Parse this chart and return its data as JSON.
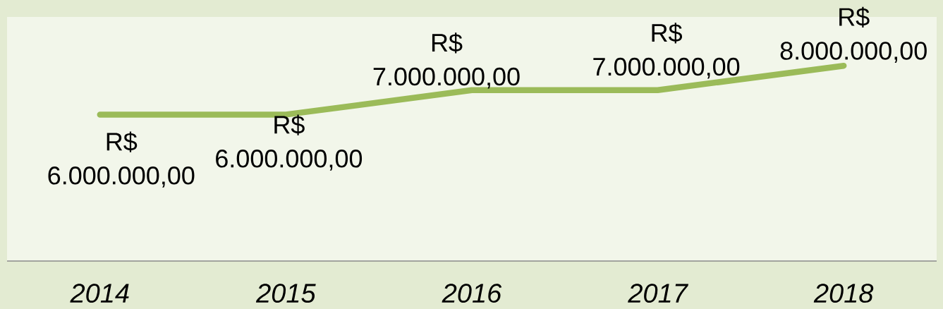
{
  "chart_data": {
    "type": "line",
    "categories": [
      "2014",
      "2015",
      "2016",
      "2017",
      "2018"
    ],
    "series": [
      {
        "color": "#9bbb59",
        "values": [
          6000000,
          6000000,
          7000000,
          7000000,
          8000000
        ],
        "value_labels": [
          "R$ 6.000.000,00",
          "R$ 6.000.000,00",
          "R$ 7.000.000,00",
          "R$ 7.000.000,00",
          "R$ 8.000.000,00"
        ]
      }
    ],
    "ylim": [
      0,
      10000000
    ],
    "tick_labels": "x",
    "marker": "none",
    "line_style": "solid"
  }
}
